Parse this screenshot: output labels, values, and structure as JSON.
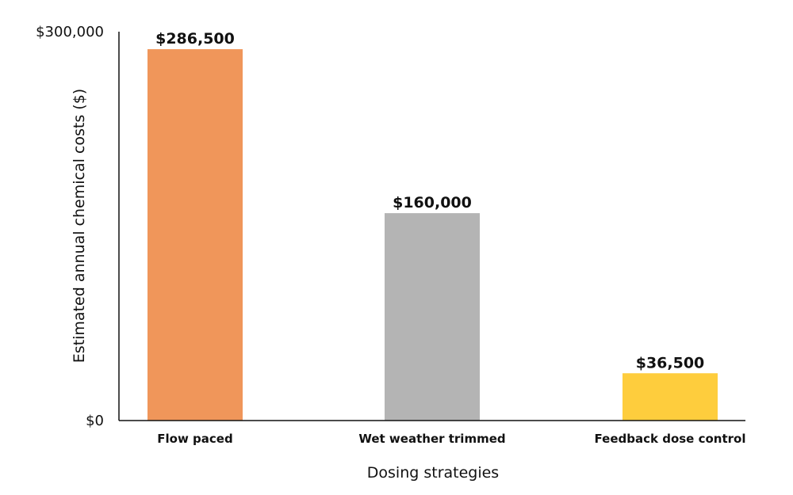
{
  "chart_data": {
    "type": "bar",
    "categories": [
      "Flow paced",
      "Wet weather trimmed",
      "Feedback dose control"
    ],
    "values": [
      286500,
      160000,
      36500
    ],
    "data_labels": [
      "$286,500",
      "$160,000",
      "$36,500"
    ],
    "colors": [
      "#F0965A",
      "#B4B4B4",
      "#FECD3D"
    ],
    "ylim": [
      0,
      300000
    ],
    "yticks": [
      0,
      300000
    ],
    "ytick_labels": [
      "$0",
      "$300,000"
    ],
    "xlabel": "Dosing strategies",
    "ylabel": "Estimated annual chemical costs ($)",
    "grid": false,
    "legend": "none"
  }
}
